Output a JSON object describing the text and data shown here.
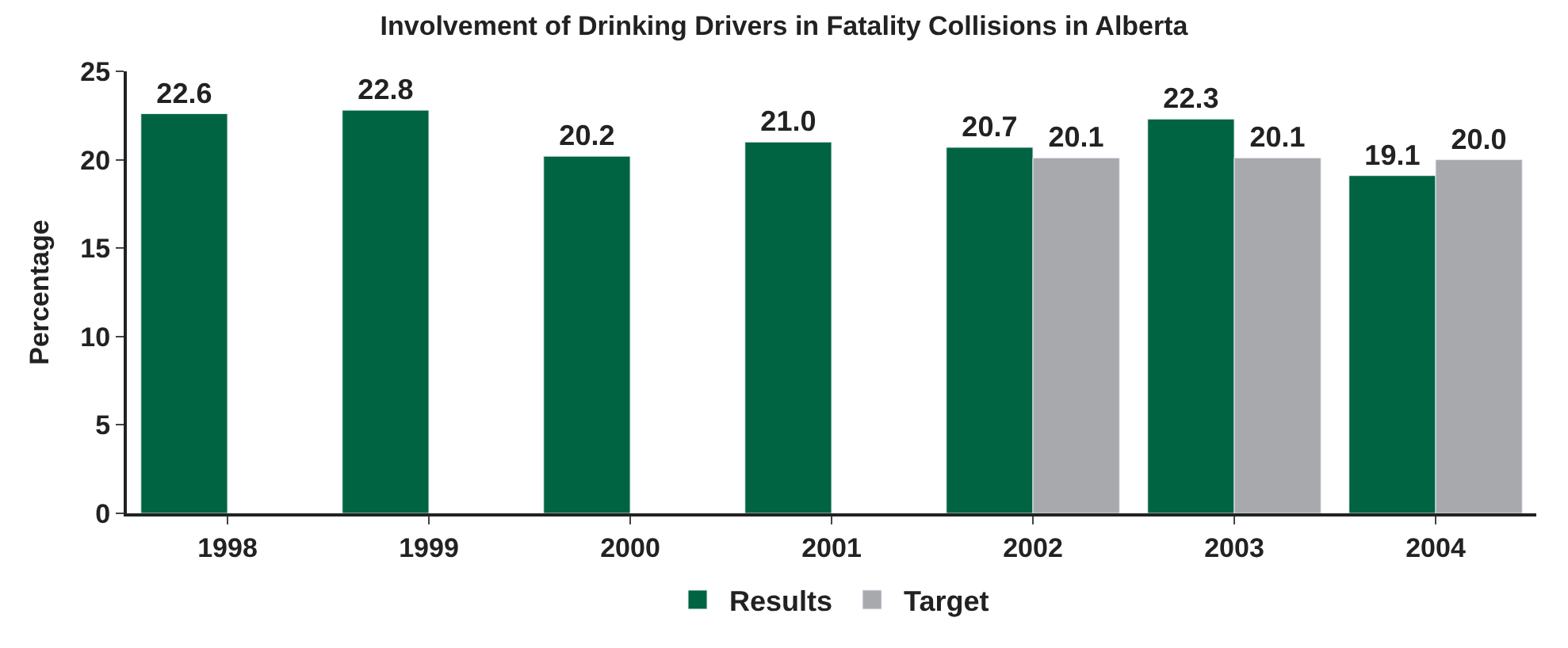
{
  "chart_data": {
    "type": "bar",
    "title": "Involvement of Drinking Drivers in Fatality Collisions in Alberta",
    "ylabel": "Percentage",
    "categories": [
      "1998",
      "1999",
      "2000",
      "2001",
      "2002",
      "2003",
      "2004"
    ],
    "series": [
      {
        "name": "Results",
        "color": "#006341",
        "values": [
          22.6,
          22.8,
          20.2,
          21.0,
          20.7,
          22.3,
          19.1
        ],
        "value_labels": [
          "22.6",
          "22.8",
          "20.2",
          "21.0",
          "20.7",
          "22.3",
          "19.1"
        ]
      },
      {
        "name": "Target",
        "color": "#a7a9ac",
        "values": [
          null,
          null,
          null,
          null,
          20.1,
          20.1,
          20.0
        ],
        "value_labels": [
          null,
          null,
          null,
          null,
          "20.1",
          "20.1",
          "20.0"
        ]
      }
    ],
    "ylim": [
      0,
      25
    ],
    "yticks": [
      0,
      5,
      10,
      15,
      20,
      25
    ],
    "legend": "bottom"
  }
}
